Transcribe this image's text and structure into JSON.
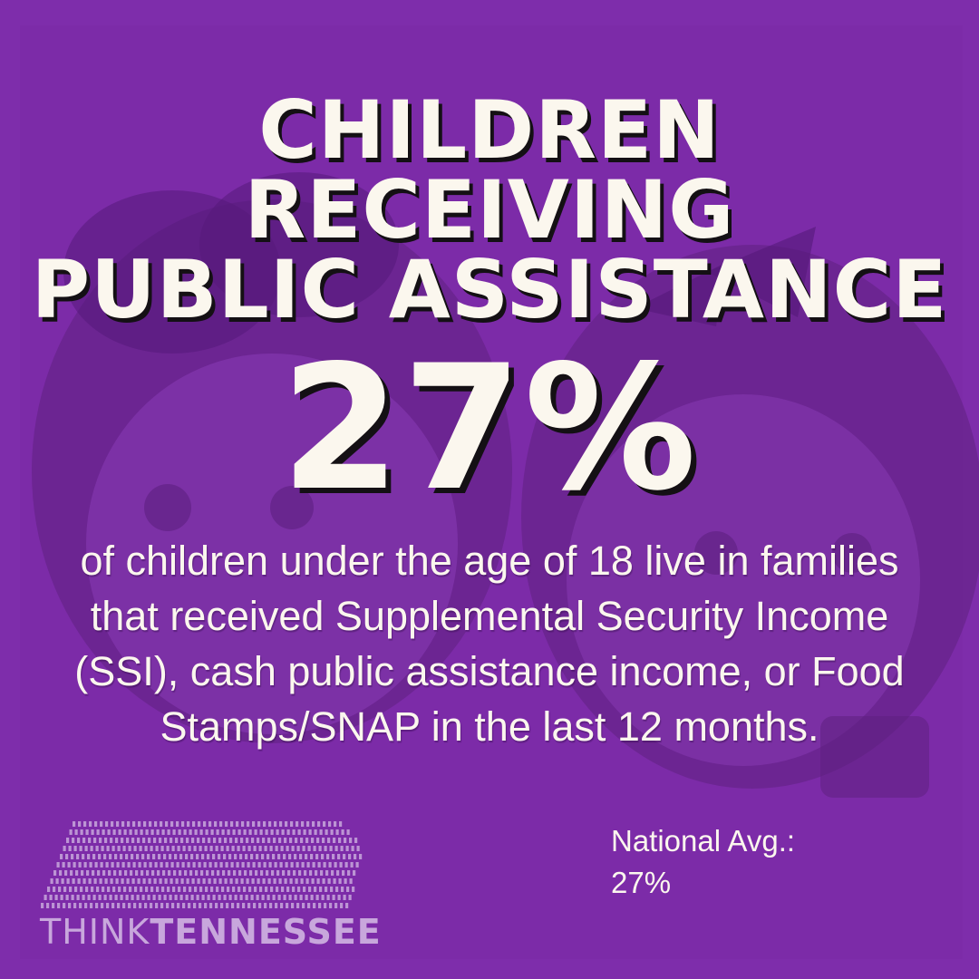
{
  "colors": {
    "background": "#7e2dab",
    "silhouette": "#5e2080",
    "text": "#fbf7ee",
    "shadow": "#141014",
    "logo": "#c8a7dc"
  },
  "background_art": {
    "icon": "children-silhouette-icon"
  },
  "title": {
    "line1": "CHILDREN RECEIVING",
    "line2": "PUBLIC ASSISTANCE"
  },
  "stat": {
    "value": "27%"
  },
  "description": {
    "text": "of children under the age of 18 live in families that received Supplemental Security Income (SSI), cash public assistance income, or Food Stamps/SNAP in the last 12 months."
  },
  "national_average": {
    "label": "National Avg.:",
    "value": "27%"
  },
  "logo": {
    "icon": "tennessee-map-icon",
    "think": "THINK",
    "tennessee": "TENNESSEE"
  }
}
